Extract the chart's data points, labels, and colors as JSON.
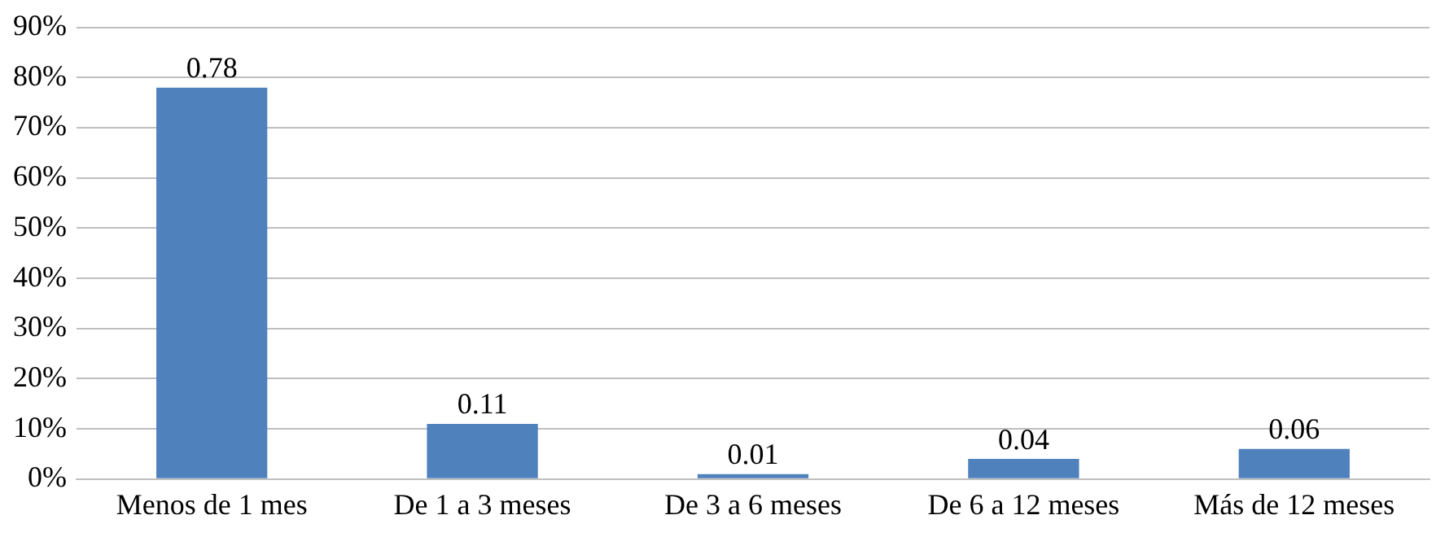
{
  "chart_data": {
    "type": "bar",
    "categories": [
      "Menos de 1 mes",
      "De 1 a 3 meses",
      "De 3 a 6 meses",
      "De 6 a 12 meses",
      "Más de 12 meses"
    ],
    "values": [
      0.78,
      0.11,
      0.01,
      0.04,
      0.06
    ],
    "color": "#4f81bd",
    "ylim": [
      0,
      0.9
    ],
    "yticks": [
      {
        "value": 0,
        "label": "0%"
      },
      {
        "value": 0.1,
        "label": "10%"
      },
      {
        "value": 0.2,
        "label": "20%"
      },
      {
        "value": 0.3,
        "label": "30%"
      },
      {
        "value": 0.4,
        "label": "40%"
      },
      {
        "value": 0.5,
        "label": "50%"
      },
      {
        "value": 0.6,
        "label": "60%"
      },
      {
        "value": 0.7,
        "label": "70%"
      },
      {
        "value": 0.8,
        "label": "80%"
      },
      {
        "value": 0.9,
        "label": "90%"
      }
    ],
    "grid": "y",
    "data_labels": true
  }
}
